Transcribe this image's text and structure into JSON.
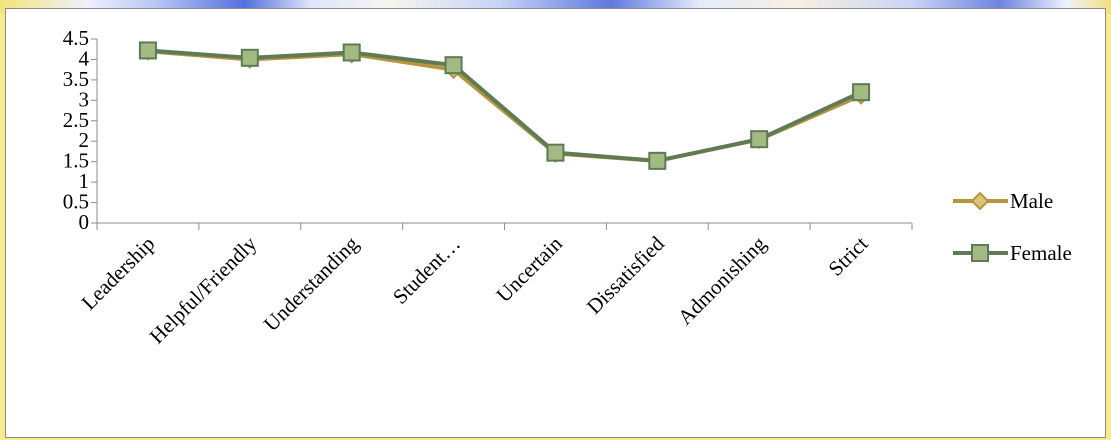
{
  "chart_data": {
    "type": "line",
    "title": "",
    "xlabel": "",
    "ylabel": "",
    "categories": [
      "Leadership",
      "Helpful/Friendly",
      "Understanding",
      "Student…",
      "Uncertain",
      "Dissatisfied",
      "Admonishing",
      "Strict"
    ],
    "yticks": [
      "0",
      "0.5",
      "1",
      "1.5",
      "2",
      "2.5",
      "3",
      "3.5",
      "4",
      "4.5"
    ],
    "ylim": [
      0,
      4.5
    ],
    "grid": false,
    "legend_position": "right",
    "series": [
      {
        "name": "Male",
        "marker": "diamond",
        "color": "#b8943c",
        "marker_fill": "#d8c47c",
        "values": [
          4.2,
          4.0,
          4.13,
          3.75,
          1.7,
          1.52,
          2.04,
          3.12
        ]
      },
      {
        "name": "Female",
        "marker": "square",
        "color": "#5f7b55",
        "marker_fill": "#a3ba82",
        "values": [
          4.22,
          4.04,
          4.17,
          3.86,
          1.72,
          1.52,
          2.05,
          3.2
        ]
      }
    ]
  }
}
